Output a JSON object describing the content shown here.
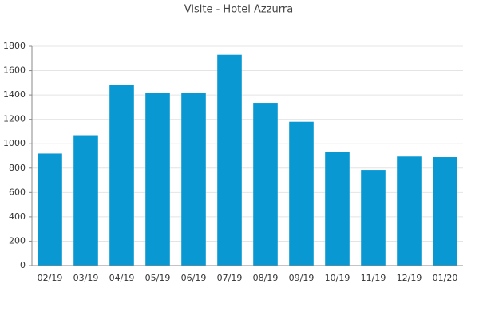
{
  "chart_data": {
    "type": "bar",
    "title": "Visite - Hotel Azzurra",
    "categories": [
      "02/19",
      "03/19",
      "04/19",
      "05/19",
      "06/19",
      "07/19",
      "08/19",
      "09/19",
      "10/19",
      "11/19",
      "12/19",
      "01/20"
    ],
    "values": [
      920,
      1070,
      1480,
      1420,
      1420,
      1730,
      1335,
      1180,
      935,
      785,
      895,
      890
    ],
    "color": "#0a98d3",
    "ylim": [
      0,
      1800
    ],
    "yticks": [
      0,
      200,
      400,
      600,
      800,
      1000,
      1200,
      1400,
      1600,
      1800
    ],
    "grid": true
  }
}
